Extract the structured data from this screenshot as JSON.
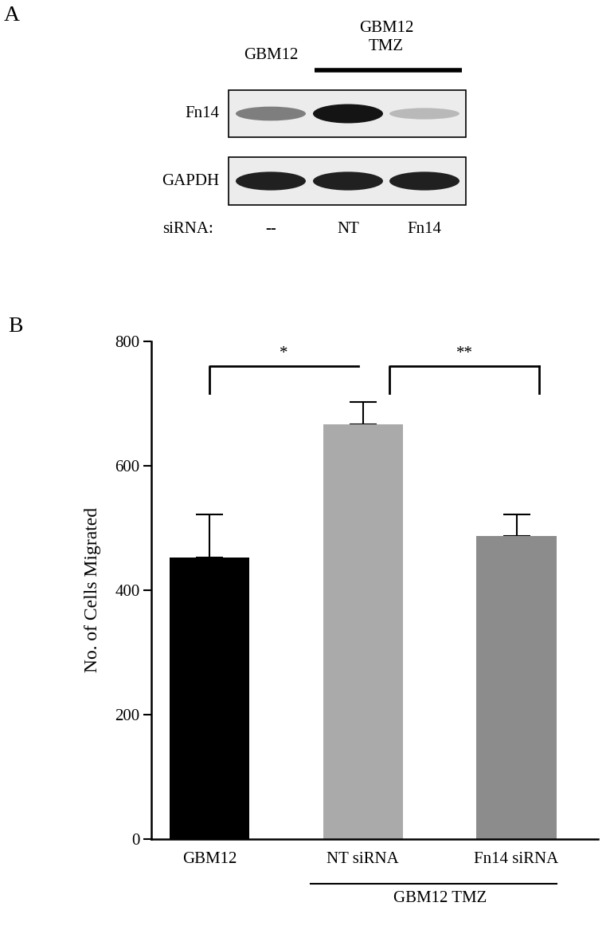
{
  "panel_labels": [
    "A",
    "B"
  ],
  "blot": {
    "column_headers": [
      {
        "text": "GBM12",
        "lanes": [
          0
        ]
      },
      {
        "text": "GBM12\nTMZ",
        "lanes": [
          1,
          2
        ]
      }
    ],
    "rows": [
      {
        "label": "Fn14",
        "intensity": [
          0.55,
          1.0,
          0.3
        ]
      },
      {
        "label": "GAPDH",
        "intensity": [
          0.95,
          0.95,
          0.95
        ]
      }
    ],
    "sirna_label": "siRNA:",
    "sirna": [
      "--",
      "NT",
      "Fn14"
    ]
  },
  "chart_data": {
    "type": "bar",
    "categories": [
      "GBM12",
      "NT siRNA",
      "Fn14 siRNA"
    ],
    "values": [
      452,
      667,
      487
    ],
    "errors": [
      70,
      36,
      35
    ],
    "colors": [
      "#000000",
      "#aaaaaa",
      "#8c8c8c"
    ],
    "group_label": {
      "text": "GBM12 TMZ",
      "categories": [
        1,
        2
      ]
    },
    "significance": [
      {
        "from": 0,
        "to": 1,
        "label": "*"
      },
      {
        "from": 1,
        "to": 2,
        "label": "**"
      }
    ],
    "y_label": "No. of Cells Migrated",
    "ylim": [
      0,
      800
    ],
    "yticks": [
      0,
      200,
      400,
      600,
      800
    ],
    "grid": false
  }
}
